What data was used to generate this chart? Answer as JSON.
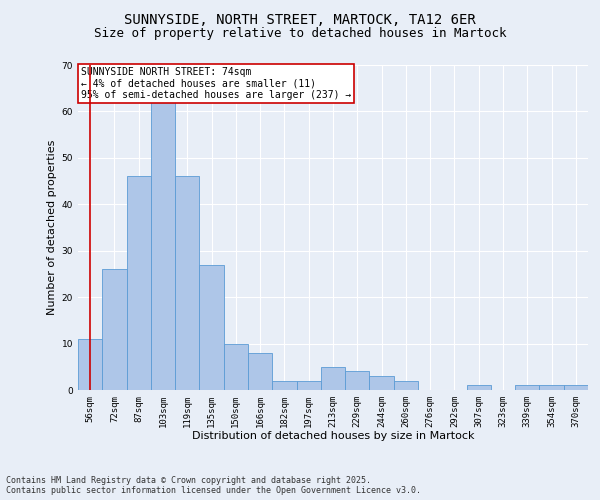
{
  "title1": "SUNNYSIDE, NORTH STREET, MARTOCK, TA12 6ER",
  "title2": "Size of property relative to detached houses in Martock",
  "xlabel": "Distribution of detached houses by size in Martock",
  "ylabel": "Number of detached properties",
  "categories": [
    "56sqm",
    "72sqm",
    "87sqm",
    "103sqm",
    "119sqm",
    "135sqm",
    "150sqm",
    "166sqm",
    "182sqm",
    "197sqm",
    "213sqm",
    "229sqm",
    "244sqm",
    "260sqm",
    "276sqm",
    "292sqm",
    "307sqm",
    "323sqm",
    "339sqm",
    "354sqm",
    "370sqm"
  ],
  "values": [
    11,
    26,
    46,
    62,
    46,
    27,
    10,
    8,
    2,
    2,
    5,
    4,
    3,
    2,
    0,
    0,
    1,
    0,
    1,
    1,
    1
  ],
  "bar_color": "#aec6e8",
  "bar_edge_color": "#5b9bd5",
  "background_color": "#e8eef7",
  "annotation_box_text": "SUNNYSIDE NORTH STREET: 74sqm\n← 4% of detached houses are smaller (11)\n95% of semi-detached houses are larger (237) →",
  "annotation_box_color": "#ffffff",
  "annotation_box_edge_color": "#cc0000",
  "vline_x_index": 0.5,
  "vline_color": "#cc0000",
  "ylim": [
    0,
    70
  ],
  "yticks": [
    0,
    10,
    20,
    30,
    40,
    50,
    60,
    70
  ],
  "footer_text": "Contains HM Land Registry data © Crown copyright and database right 2025.\nContains public sector information licensed under the Open Government Licence v3.0.",
  "title_fontsize": 10,
  "subtitle_fontsize": 9,
  "xlabel_fontsize": 8,
  "ylabel_fontsize": 8,
  "tick_fontsize": 6.5,
  "annotation_fontsize": 7,
  "footer_fontsize": 6
}
